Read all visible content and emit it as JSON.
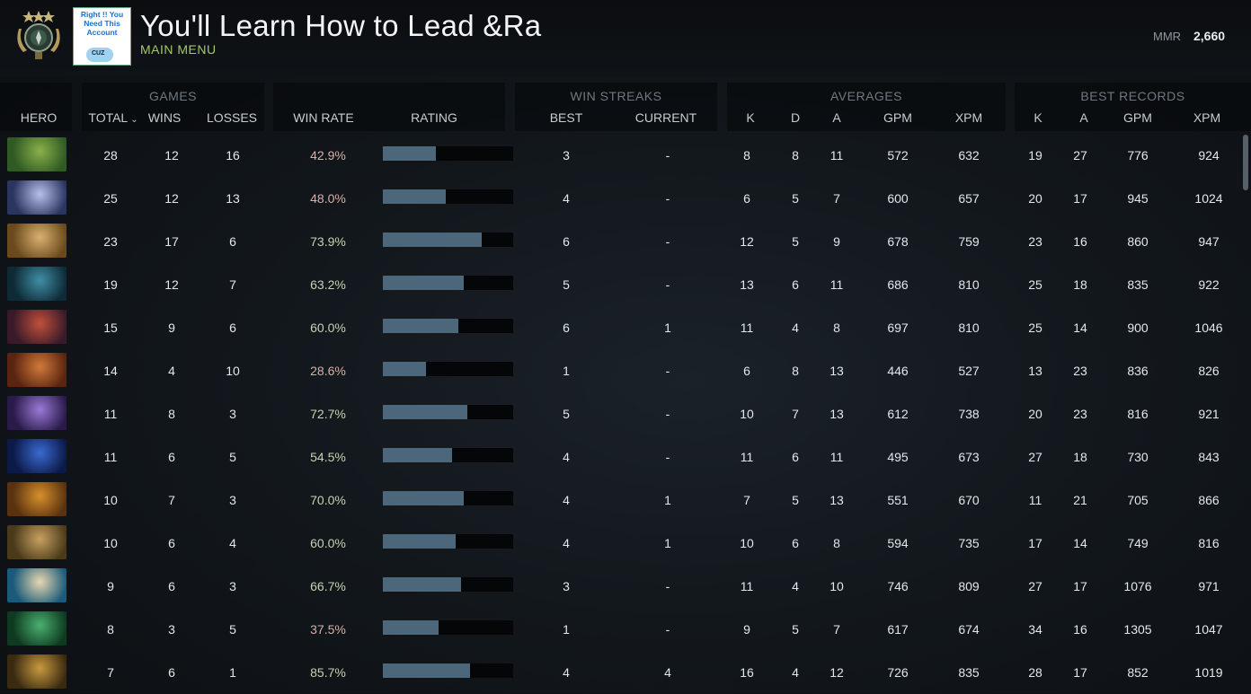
{
  "header": {
    "title": "You'll Learn How to Lead &Ra",
    "subtitle": "MAIN MENU",
    "avatar_text": "Right !! You Need This Account",
    "avatar_tag": "CUZ",
    "mmr_label": "MMR",
    "mmr_value": "2,660"
  },
  "groups": {
    "games": "GAMES",
    "win_streaks": "WIN STREAKS",
    "averages": "AVERAGES",
    "best_records": "BEST RECORDS"
  },
  "columns": {
    "hero": "HERO",
    "total": "TOTAL",
    "wins": "WINS",
    "losses": "LOSSES",
    "win_rate": "WIN RATE",
    "rating": "RATING",
    "best": "BEST",
    "current": "CURRENT",
    "avg_k": "K",
    "avg_d": "D",
    "avg_a": "A",
    "avg_gpm": "GPM",
    "avg_xpm": "XPM",
    "best_k": "K",
    "best_a": "A",
    "best_gpm": "GPM",
    "best_xpm": "XPM"
  },
  "sort_indicator": "⌄",
  "colors": {
    "accent_green": "#a7c766",
    "rating_bar": "#4b6779"
  },
  "rows": [
    {
      "total": "28",
      "wins": "12",
      "losses": "16",
      "win_rate": "42.9%",
      "rating": 0.41,
      "best_streak": "3",
      "current_streak": "-",
      "k": "8",
      "d": "8",
      "a": "11",
      "gpm": "572",
      "xpm": "632",
      "best_k": "19",
      "best_a": "27",
      "best_gpm": "776",
      "best_xpm": "924",
      "hero_colors": [
        "#2f5a24",
        "#8ab04a"
      ]
    },
    {
      "total": "25",
      "wins": "12",
      "losses": "13",
      "win_rate": "48.0%",
      "rating": 0.48,
      "best_streak": "4",
      "current_streak": "-",
      "k": "6",
      "d": "5",
      "a": "7",
      "gpm": "600",
      "xpm": "657",
      "best_k": "20",
      "best_a": "17",
      "best_gpm": "945",
      "best_xpm": "1024",
      "hero_colors": [
        "#2a3560",
        "#b7c0e8"
      ]
    },
    {
      "total": "23",
      "wins": "17",
      "losses": "6",
      "win_rate": "73.9%",
      "rating": 0.76,
      "best_streak": "6",
      "current_streak": "-",
      "k": "12",
      "d": "5",
      "a": "9",
      "gpm": "678",
      "xpm": "759",
      "best_k": "23",
      "best_a": "16",
      "best_gpm": "860",
      "best_xpm": "947",
      "hero_colors": [
        "#6a4a1c",
        "#d9b070"
      ]
    },
    {
      "total": "19",
      "wins": "12",
      "losses": "7",
      "win_rate": "63.2%",
      "rating": 0.62,
      "best_streak": "5",
      "current_streak": "-",
      "k": "13",
      "d": "6",
      "a": "11",
      "gpm": "686",
      "xpm": "810",
      "best_k": "25",
      "best_a": "18",
      "best_gpm": "835",
      "best_xpm": "922",
      "hero_colors": [
        "#0e2a36",
        "#3f8fa6"
      ]
    },
    {
      "total": "15",
      "wins": "9",
      "losses": "6",
      "win_rate": "60.0%",
      "rating": 0.58,
      "best_streak": "6",
      "current_streak": "1",
      "k": "11",
      "d": "4",
      "a": "8",
      "gpm": "697",
      "xpm": "810",
      "best_k": "25",
      "best_a": "14",
      "best_gpm": "900",
      "best_xpm": "1046",
      "hero_colors": [
        "#3a1a2a",
        "#c0503a"
      ]
    },
    {
      "total": "14",
      "wins": "4",
      "losses": "10",
      "win_rate": "28.6%",
      "rating": 0.33,
      "best_streak": "1",
      "current_streak": "-",
      "k": "6",
      "d": "8",
      "a": "13",
      "gpm": "446",
      "xpm": "527",
      "best_k": "13",
      "best_a": "23",
      "best_gpm": "836",
      "best_xpm": "826",
      "hero_colors": [
        "#5a2410",
        "#d07a3a"
      ]
    },
    {
      "total": "11",
      "wins": "8",
      "losses": "3",
      "win_rate": "72.7%",
      "rating": 0.65,
      "best_streak": "5",
      "current_streak": "-",
      "k": "10",
      "d": "7",
      "a": "13",
      "gpm": "612",
      "xpm": "738",
      "best_k": "20",
      "best_a": "23",
      "best_gpm": "816",
      "best_xpm": "921",
      "hero_colors": [
        "#2a1a4a",
        "#9a7ad6"
      ]
    },
    {
      "total": "11",
      "wins": "6",
      "losses": "5",
      "win_rate": "54.5%",
      "rating": 0.53,
      "best_streak": "4",
      "current_streak": "-",
      "k": "11",
      "d": "6",
      "a": "11",
      "gpm": "495",
      "xpm": "673",
      "best_k": "27",
      "best_a": "18",
      "best_gpm": "730",
      "best_xpm": "843",
      "hero_colors": [
        "#0c1a4a",
        "#3a6ad0"
      ]
    },
    {
      "total": "10",
      "wins": "7",
      "losses": "3",
      "win_rate": "70.0%",
      "rating": 0.62,
      "best_streak": "4",
      "current_streak": "1",
      "k": "7",
      "d": "5",
      "a": "13",
      "gpm": "551",
      "xpm": "670",
      "best_k": "11",
      "best_a": "21",
      "best_gpm": "705",
      "best_xpm": "866",
      "hero_colors": [
        "#5a3210",
        "#d6902a"
      ]
    },
    {
      "total": "10",
      "wins": "6",
      "losses": "4",
      "win_rate": "60.0%",
      "rating": 0.56,
      "best_streak": "4",
      "current_streak": "1",
      "k": "10",
      "d": "6",
      "a": "8",
      "gpm": "594",
      "xpm": "735",
      "best_k": "17",
      "best_a": "14",
      "best_gpm": "749",
      "best_xpm": "816",
      "hero_colors": [
        "#4a3a1a",
        "#c8a060"
      ]
    },
    {
      "total": "9",
      "wins": "6",
      "losses": "3",
      "win_rate": "66.7%",
      "rating": 0.6,
      "best_streak": "3",
      "current_streak": "-",
      "k": "11",
      "d": "4",
      "a": "10",
      "gpm": "746",
      "xpm": "809",
      "best_k": "27",
      "best_a": "17",
      "best_gpm": "1076",
      "best_xpm": "971",
      "hero_colors": [
        "#1a5a7a",
        "#e8d8b0"
      ]
    },
    {
      "total": "8",
      "wins": "3",
      "losses": "5",
      "win_rate": "37.5%",
      "rating": 0.43,
      "best_streak": "1",
      "current_streak": "-",
      "k": "9",
      "d": "5",
      "a": "7",
      "gpm": "617",
      "xpm": "674",
      "best_k": "34",
      "best_a": "16",
      "best_gpm": "1305",
      "best_xpm": "1047",
      "hero_colors": [
        "#0e3a20",
        "#4ab070"
      ]
    },
    {
      "total": "7",
      "wins": "6",
      "losses": "1",
      "win_rate": "85.7%",
      "rating": 0.67,
      "best_streak": "4",
      "current_streak": "4",
      "k": "16",
      "d": "4",
      "a": "12",
      "gpm": "726",
      "xpm": "835",
      "best_k": "28",
      "best_a": "17",
      "best_gpm": "852",
      "best_xpm": "1019",
      "hero_colors": [
        "#3a2a10",
        "#c89a40"
      ]
    }
  ]
}
